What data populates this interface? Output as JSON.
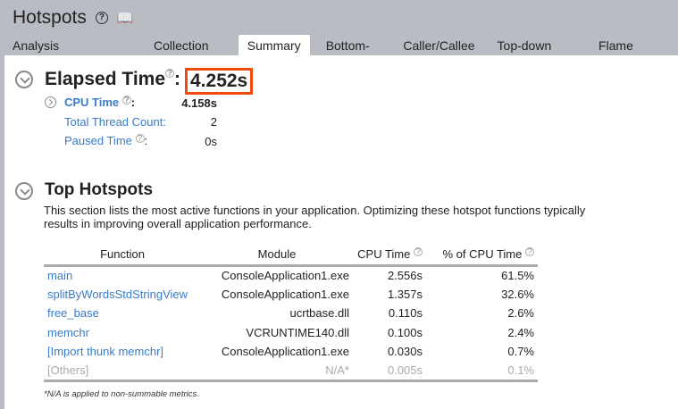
{
  "header": {
    "title": "Hotspots",
    "help_icon": "question-circle-icon",
    "guide_icon": "book-question-icon"
  },
  "tabs": [
    {
      "label": "Analysis Configuration"
    },
    {
      "label": "Collection Log"
    },
    {
      "label": "Summary",
      "active": true
    },
    {
      "label": "Bottom-up"
    },
    {
      "label": "Caller/Callee"
    },
    {
      "label": "Top-down Tree"
    },
    {
      "label": "Flame Graph"
    }
  ],
  "elapsed": {
    "title": "Elapsed Time",
    "value": "4.252s",
    "highlight_color": "#f04b0c",
    "metrics": [
      {
        "label": "CPU Time",
        "suffix": ":",
        "value": "4.158s"
      },
      {
        "label": "Total Thread Count:",
        "value": "2"
      },
      {
        "label": "Paused Time",
        "suffix": ":",
        "value": "0s"
      }
    ]
  },
  "hotspots": {
    "title": "Top Hotspots",
    "description": "This section lists the most active functions in your application. Optimizing these hotspot functions typically results in improving overall application performance.",
    "columns": [
      "Function",
      "Module",
      "CPU Time",
      "% of CPU Time"
    ],
    "rows": [
      [
        "main",
        "ConsoleApplication1.exe",
        "2.556s",
        "61.5%"
      ],
      [
        "splitByWordsStdStringView",
        "ConsoleApplication1.exe",
        "1.357s",
        "32.6%"
      ],
      [
        "free_base",
        "ucrtbase.dll",
        "0.110s",
        "2.6%"
      ],
      [
        "memchr",
        "VCRUNTIME140.dll",
        "0.100s",
        "2.4%"
      ],
      [
        "[Import thunk memchr]",
        "ConsoleApplication1.exe",
        "0.030s",
        "0.7%"
      ],
      [
        "[Others]",
        "N/A*",
        "0.005s",
        "0.1%"
      ]
    ],
    "note": "*N/A is applied to non-summable metrics."
  }
}
